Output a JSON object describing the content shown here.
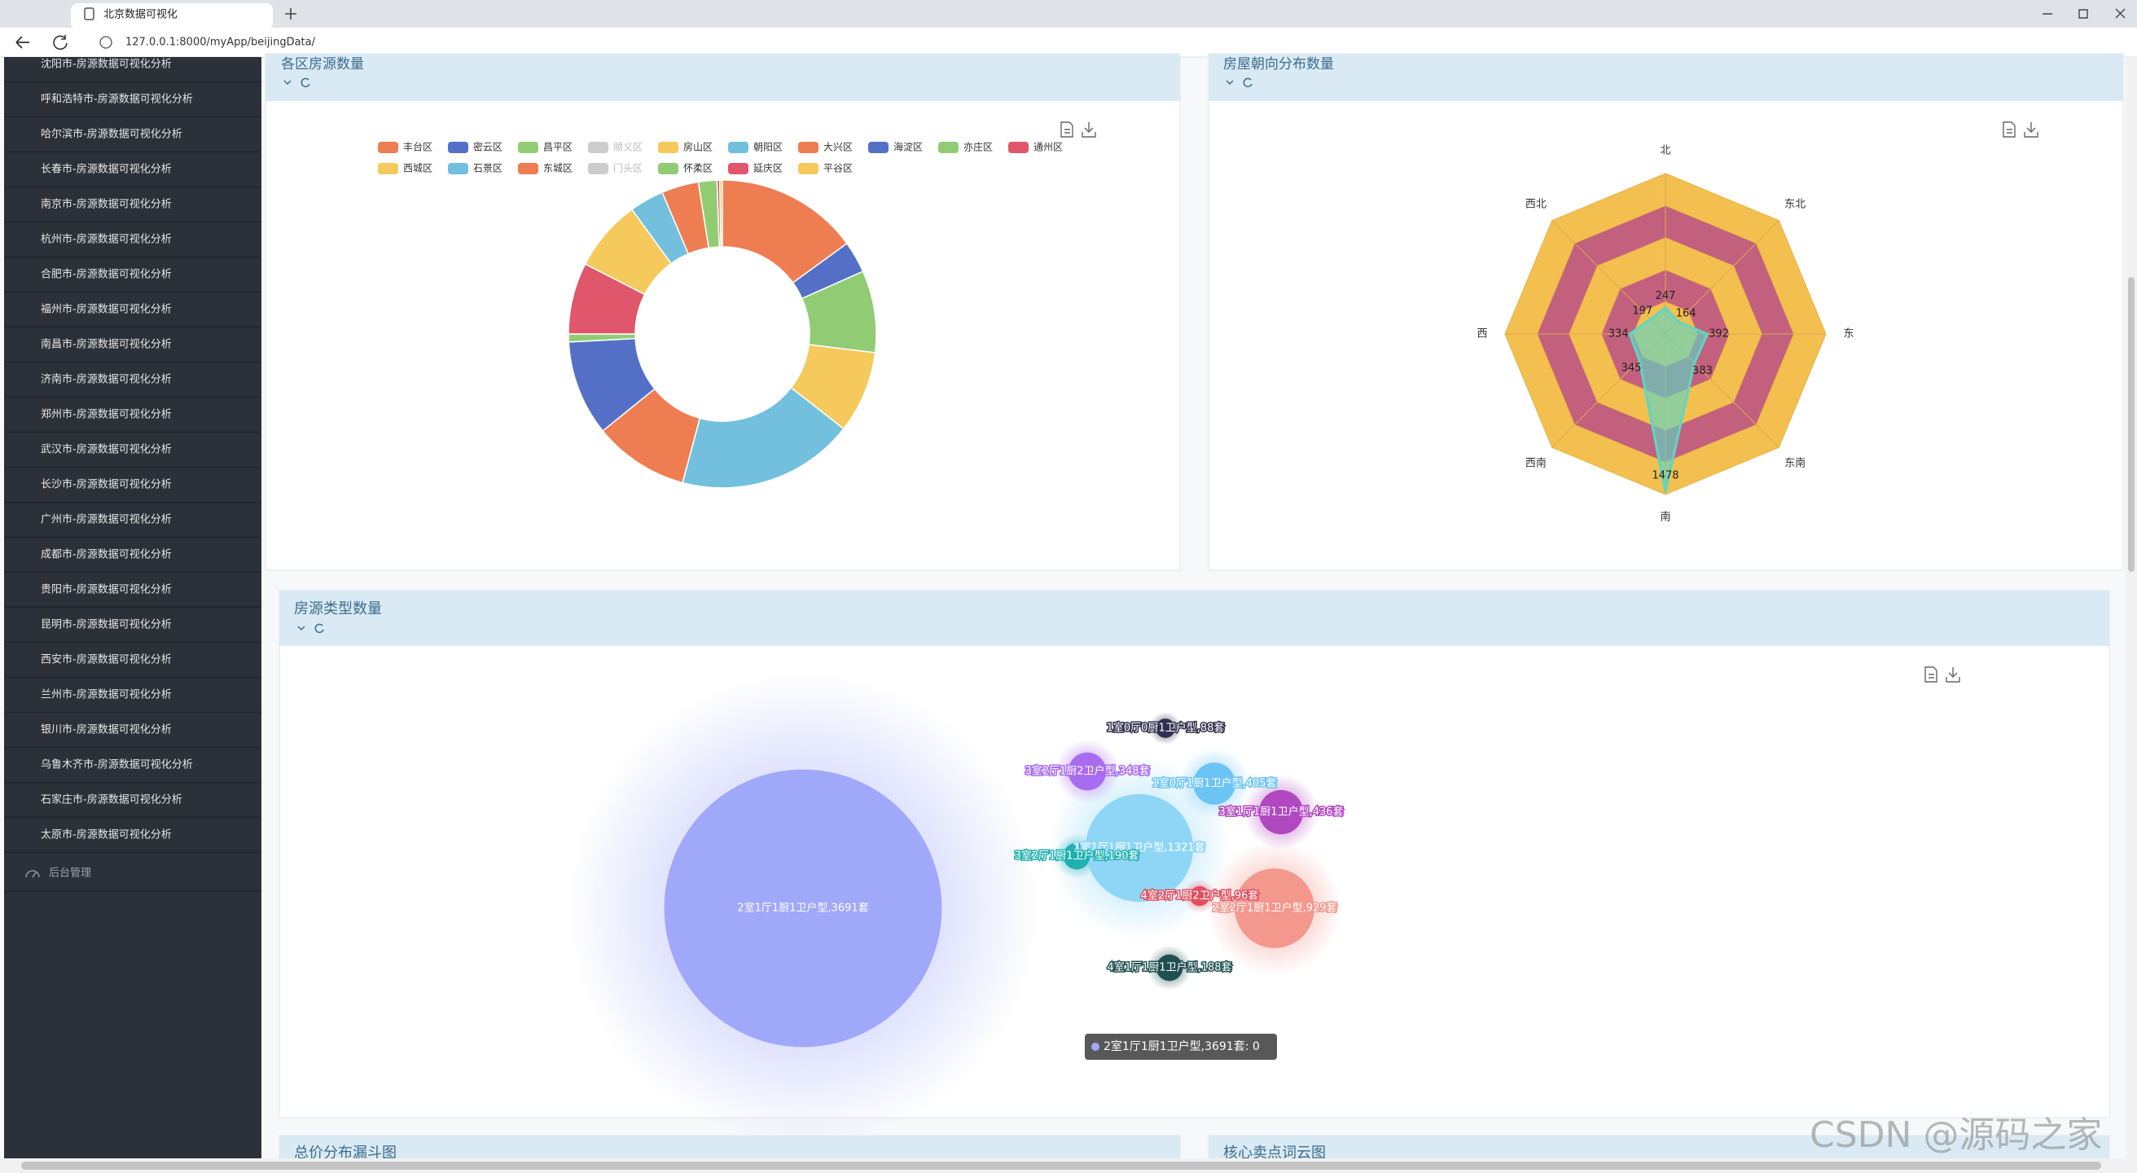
{
  "browser": {
    "tab_title": "北京数据可视化",
    "url": "127.0.0.1:8000/myApp/beijingData/"
  },
  "sidebar": {
    "items": [
      "沈阳市-房源数据可视化分析",
      "呼和浩特市-房源数据可视化分析",
      "哈尔滨市-房源数据可视化分析",
      "长春市-房源数据可视化分析",
      "南京市-房源数据可视化分析",
      "杭州市-房源数据可视化分析",
      "合肥市-房源数据可视化分析",
      "福州市-房源数据可视化分析",
      "南昌市-房源数据可视化分析",
      "济南市-房源数据可视化分析",
      "郑州市-房源数据可视化分析",
      "武汉市-房源数据可视化分析",
      "长沙市-房源数据可视化分析",
      "广州市-房源数据可视化分析",
      "成都市-房源数据可视化分析",
      "贵阳市-房源数据可视化分析",
      "昆明市-房源数据可视化分析",
      "西安市-房源数据可视化分析",
      "兰州市-房源数据可视化分析",
      "银川市-房源数据可视化分析",
      "乌鲁木齐市-房源数据可视化分析",
      "石家庄市-房源数据可视化分析",
      "太原市-房源数据可视化分析"
    ],
    "admin": "后台管理"
  },
  "chart_data": [
    {
      "type": "pie",
      "title": "各区房源数量",
      "categories": [
        "丰台区",
        "密云区",
        "昌平区",
        "顺义区",
        "房山区",
        "朝阳区",
        "大兴区",
        "海淀区",
        "亦庄区",
        "通州区",
        "西城区",
        "石景区",
        "东城区",
        "门头区",
        "怀柔区",
        "延庆区",
        "平谷区"
      ],
      "values": [
        540,
        120,
        310,
        null,
        310,
        670,
        360,
        360,
        30,
        270,
        270,
        130,
        140,
        null,
        70,
        10,
        10
      ],
      "colors": [
        "#ef7d52",
        "#5470c6",
        "#91cc75",
        "#cccccc",
        "#f5c95b",
        "#73c0de",
        "#ef7d52",
        "#5470c6",
        "#91cc75",
        "#e0566a",
        "#f5c95b",
        "#73c0de",
        "#ef7d52",
        "#cccccc",
        "#91cc75",
        "#e0566a",
        "#f5c95b"
      ]
    },
    {
      "type": "radar",
      "title": "房屋朝向分布数量",
      "categories": [
        "北",
        "东北",
        "东",
        "东南",
        "南",
        "西南",
        "西",
        "西北"
      ],
      "values": [
        247,
        164,
        392,
        383,
        1478,
        345,
        334,
        197
      ],
      "rlim": [
        0,
        1500
      ],
      "color": "#5fd6c4",
      "split_colors": [
        "#f3c04f",
        "#c2607e"
      ]
    },
    {
      "type": "bubble",
      "title": "房源类型数量",
      "categories": [
        "2室1厅1厨1卫户型,3691套",
        "1室1厅1厨1卫户型,1321套",
        "2室2厅1厨1卫户型,929套",
        "3室2厅1厨2卫户型,348套",
        "3室1厅1厨1卫户型,436套",
        "1室0厅1厨1卫户型,405套",
        "3室2厅1厨1卫户型,190套",
        "4室2厅1厨2卫户型,96套",
        "1室0厅0厨1卫户型,88套",
        "4室1厅1厨1卫户型,188套"
      ],
      "values": [
        3691,
        1321,
        929,
        348,
        436,
        405,
        190,
        96,
        88,
        188
      ],
      "colors": [
        "#a0a8fa",
        "#8fd6f6",
        "#f4978c",
        "#a86cf0",
        "#b048c0",
        "#6cc4f4",
        "#1fb0b0",
        "#e05060",
        "#30304e",
        "#1f4f50"
      ]
    }
  ],
  "bottom_panels": {
    "titles": [
      "总价分布漏斗图",
      "核心卖点词云图"
    ]
  },
  "tooltip": "2室1厅1厨1卫户型,3691套: 0",
  "watermark": "CSDN @源码之家"
}
